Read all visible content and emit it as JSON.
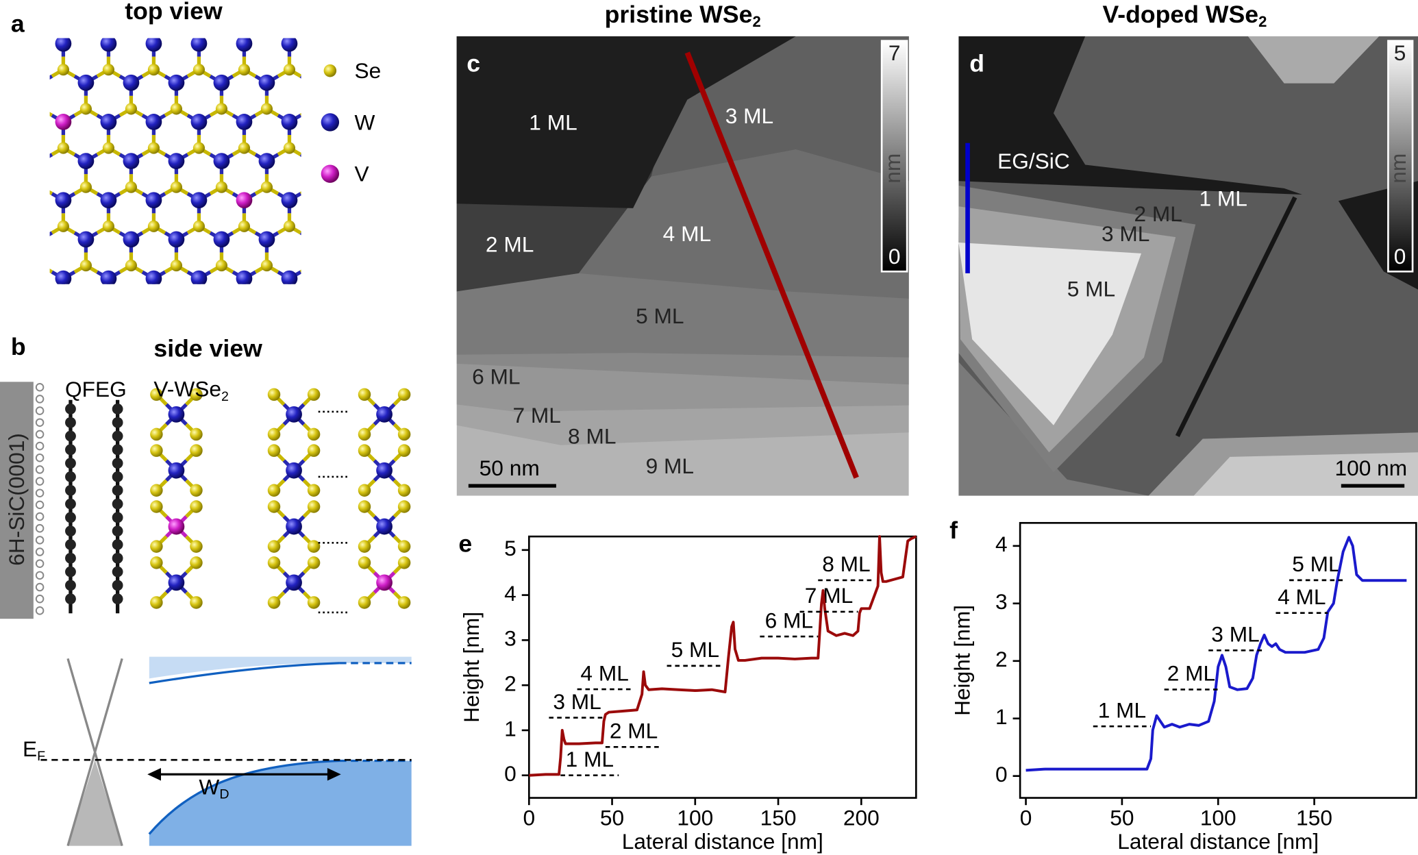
{
  "panels": {
    "a": {
      "letter": "a",
      "title": "top view",
      "legend": [
        "Se",
        "W",
        "V"
      ]
    },
    "b": {
      "letter": "b",
      "title": "side view",
      "substrate": "6H-SiC(0001)",
      "graphene": "QFEG",
      "film": {
        "main": "V-WSe",
        "sub": "2"
      },
      "fermi": {
        "main": "E",
        "sub": "F"
      },
      "depletion": {
        "main": "W",
        "sub": "D"
      }
    },
    "c": {
      "letter": "c",
      "title": {
        "main": "pristine WSe",
        "sub": "2"
      },
      "layers": [
        "1 ML",
        "2 ML",
        "3 ML",
        "4 ML",
        "5 ML",
        "6 ML",
        "7 ML",
        "8 ML",
        "9 ML"
      ],
      "colorbar": {
        "max": "7",
        "unit": "nm",
        "min": "0"
      },
      "scalebar": "50 nm"
    },
    "d": {
      "letter": "d",
      "title": {
        "main": "V-doped WSe",
        "sub": "2"
      },
      "substrate": "EG/SiC",
      "layers": [
        "1 ML",
        "2 ML",
        "3 ML",
        "5 ML"
      ],
      "colorbar": {
        "max": "5",
        "unit": "nm",
        "min": "0"
      },
      "scalebar": "100 nm"
    }
  },
  "chart_data": [
    {
      "type": "line",
      "letter": "e",
      "xlabel": "Lateral distance [nm]",
      "ylabel": "Height [nm]",
      "xlim": [
        0,
        233
      ],
      "ylim": [
        -0.5,
        5.3
      ],
      "xticks": [
        0,
        50,
        100,
        150,
        200
      ],
      "yticks": [
        0,
        1,
        2,
        3,
        4,
        5
      ],
      "x": [
        0,
        10,
        18,
        19,
        20,
        21,
        22,
        25,
        30,
        40,
        44,
        45,
        46,
        48,
        55,
        65,
        68,
        69,
        70,
        72,
        80,
        90,
        100,
        110,
        118,
        120,
        122,
        123,
        124,
        126,
        130,
        140,
        150,
        160,
        170,
        174,
        175,
        176,
        177,
        178,
        180,
        185,
        190,
        195,
        198,
        199,
        200,
        205,
        210,
        211,
        212,
        213,
        215,
        220,
        225,
        228,
        230,
        233
      ],
      "series": [
        {
          "name": "pristine WSe2",
          "color": "#9b0a0a",
          "values": [
            0,
            0.02,
            0.02,
            0.4,
            1.0,
            0.8,
            0.7,
            0.7,
            0.7,
            0.72,
            0.72,
            1.2,
            1.35,
            1.4,
            1.42,
            1.45,
            1.8,
            2.3,
            2.0,
            1.9,
            1.92,
            1.9,
            1.88,
            1.9,
            1.85,
            2.6,
            3.3,
            3.4,
            2.8,
            2.55,
            2.55,
            2.6,
            2.6,
            2.58,
            2.6,
            2.6,
            3.2,
            3.8,
            4.1,
            3.7,
            3.2,
            3.1,
            3.15,
            3.1,
            3.2,
            3.6,
            3.7,
            3.7,
            4.2,
            5.3,
            4.5,
            4.3,
            4.3,
            4.35,
            4.4,
            5.2,
            5.25,
            5.3
          ]
        }
      ],
      "annotations": [
        "1 ML",
        "2 ML",
        "3 ML",
        "4 ML",
        "5 ML",
        "6 ML",
        "7 ML",
        "8 ML"
      ]
    },
    {
      "type": "line",
      "letter": "f",
      "xlabel": "Lateral distance [nm]",
      "ylabel": "Height [nm]",
      "xlim": [
        -3,
        203
      ],
      "ylim": [
        -0.38,
        4.4
      ],
      "xticks": [
        0,
        50,
        100,
        150
      ],
      "yticks": [
        0,
        1,
        2,
        3,
        4
      ],
      "x": [
        0,
        10,
        30,
        50,
        63,
        65,
        66,
        68,
        70,
        72,
        76,
        80,
        85,
        90,
        95,
        98,
        100,
        102,
        104,
        106,
        110,
        115,
        118,
        120,
        122,
        124,
        126,
        128,
        130,
        132,
        135,
        145,
        152,
        155,
        157,
        158,
        160,
        162,
        165,
        168,
        170,
        172,
        175,
        185,
        195,
        198
      ],
      "series": [
        {
          "name": "V-doped WSe2",
          "color": "#1a1acc",
          "values": [
            0.1,
            0.12,
            0.12,
            0.12,
            0.12,
            0.3,
            0.8,
            1.05,
            0.95,
            0.85,
            0.9,
            0.85,
            0.9,
            0.88,
            0.95,
            1.3,
            1.9,
            2.1,
            1.9,
            1.55,
            1.5,
            1.52,
            1.7,
            2.1,
            2.3,
            2.45,
            2.3,
            2.25,
            2.3,
            2.2,
            2.15,
            2.15,
            2.2,
            2.4,
            2.85,
            2.9,
            3.0,
            3.4,
            3.9,
            4.15,
            4.0,
            3.5,
            3.4,
            3.4,
            3.4,
            3.4
          ]
        }
      ],
      "annotations": [
        "1 ML",
        "2 ML",
        "3 ML",
        "4 ML",
        "5 ML"
      ]
    }
  ]
}
